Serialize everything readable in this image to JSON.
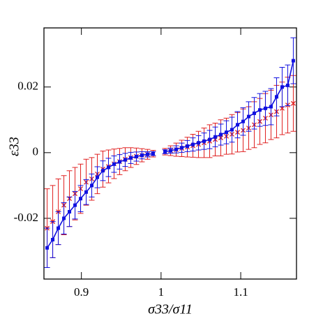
{
  "chart_data": {
    "type": "errorbar",
    "xlabel": "σ33/σ11",
    "ylabel": "ε33",
    "xlim": [
      0.853,
      1.17
    ],
    "ylim": [
      -0.0385,
      0.038
    ],
    "xticks": [
      0.9,
      1,
      1.1
    ],
    "yticks": [
      -0.02,
      0,
      0.02
    ],
    "x": [
      0.857,
      0.864,
      0.871,
      0.878,
      0.885,
      0.892,
      0.899,
      0.906,
      0.913,
      0.92,
      0.927,
      0.934,
      0.941,
      0.948,
      0.955,
      0.962,
      0.969,
      0.976,
      0.983,
      0.99,
      1.0,
      1.005,
      1.012,
      1.019,
      1.026,
      1.033,
      1.04,
      1.047,
      1.054,
      1.061,
      1.068,
      1.075,
      1.082,
      1.089,
      1.096,
      1.103,
      1.11,
      1.117,
      1.124,
      1.131,
      1.138,
      1.145,
      1.152,
      1.159,
      1.166
    ],
    "series": [
      {
        "name": "red",
        "color": "#e02020",
        "marker": "x",
        "values": [
          -0.023,
          -0.021,
          -0.018,
          -0.016,
          -0.014,
          -0.0125,
          -0.011,
          -0.009,
          -0.008,
          -0.0065,
          -0.005,
          -0.0042,
          -0.0034,
          -0.0027,
          -0.002,
          -0.0015,
          -0.0011,
          -0.0008,
          -0.0005,
          -0.0003,
          null,
          0.0003,
          0.0006,
          0.0009,
          0.0013,
          0.0017,
          0.0021,
          0.0025,
          0.003,
          0.0035,
          0.004,
          0.0045,
          0.005,
          0.0056,
          0.0062,
          0.0068,
          0.0075,
          0.0085,
          0.0095,
          0.0105,
          0.0115,
          0.0125,
          0.0135,
          0.0145,
          0.015
        ],
        "errors": [
          0.012,
          0.011,
          0.01,
          0.009,
          0.0085,
          0.008,
          0.0075,
          0.007,
          0.0065,
          0.006,
          0.0055,
          0.005,
          0.0045,
          0.004,
          0.0035,
          0.003,
          0.0025,
          0.002,
          0.0015,
          0.001,
          null,
          0.001,
          0.0015,
          0.002,
          0.0025,
          0.003,
          0.0035,
          0.004,
          0.0045,
          0.005,
          0.005,
          0.0055,
          0.0055,
          0.006,
          0.006,
          0.0065,
          0.0065,
          0.007,
          0.007,
          0.0075,
          0.0075,
          0.008,
          0.008,
          0.0085,
          0.0085
        ]
      },
      {
        "name": "blue",
        "color": "#1010e0",
        "marker": "square",
        "values": [
          -0.029,
          -0.0265,
          -0.023,
          -0.02,
          -0.018,
          -0.016,
          -0.014,
          -0.012,
          -0.01,
          -0.0075,
          -0.0055,
          -0.0045,
          -0.0035,
          -0.0028,
          -0.0022,
          -0.0016,
          -0.0012,
          -0.0008,
          -0.0005,
          -0.0003,
          null,
          0.0003,
          0.0006,
          0.001,
          0.0015,
          0.002,
          0.0025,
          0.003,
          0.0035,
          0.004,
          0.0048,
          0.0055,
          0.0062,
          0.007,
          0.0085,
          0.0095,
          0.011,
          0.012,
          0.013,
          0.0135,
          0.014,
          0.017,
          0.02,
          0.0205,
          0.028
        ],
        "errors": [
          0.006,
          0.0055,
          0.005,
          0.0048,
          0.0045,
          0.0042,
          0.004,
          0.0038,
          0.0035,
          0.0032,
          0.003,
          0.0028,
          0.0025,
          0.0022,
          0.002,
          0.0017,
          0.0014,
          0.0011,
          0.0008,
          0.0006,
          null,
          0.0006,
          0.0008,
          0.0011,
          0.0014,
          0.0017,
          0.002,
          0.0022,
          0.0025,
          0.0028,
          0.003,
          0.0032,
          0.0035,
          0.0038,
          0.004,
          0.0042,
          0.0045,
          0.0048,
          0.005,
          0.0052,
          0.0055,
          0.0058,
          0.006,
          0.0062,
          0.007
        ]
      }
    ]
  }
}
